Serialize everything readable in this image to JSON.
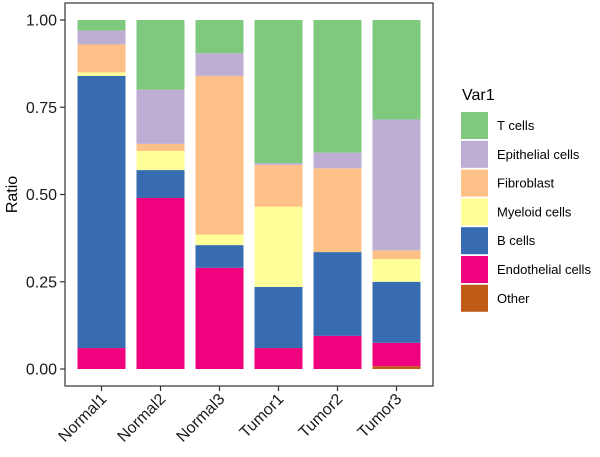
{
  "chart_data": {
    "type": "bar",
    "stacked": true,
    "ylabel": "Ratio",
    "ylim": [
      0,
      1
    ],
    "yticks": [
      "0.00",
      "0.25",
      "0.50",
      "0.75",
      "1.00"
    ],
    "categories": [
      "Normal1",
      "Normal2",
      "Normal3",
      "Tumor1",
      "Tumor2",
      "Tumor3"
    ],
    "legend": {
      "title": "Var1",
      "placement": "right"
    },
    "grid": false,
    "series": [
      {
        "name": "Other",
        "color": "#bf5b17",
        "values": [
          0.0,
          0.0,
          0.0,
          0.0,
          0.0,
          0.008
        ]
      },
      {
        "name": "Endothelial cells",
        "color": "#f0027f",
        "values": [
          0.06,
          0.49,
          0.29,
          0.06,
          0.095,
          0.067
        ]
      },
      {
        "name": "B cells",
        "color": "#386cb0",
        "values": [
          0.78,
          0.08,
          0.065,
          0.175,
          0.24,
          0.175
        ]
      },
      {
        "name": "Myeloid cells",
        "color": "#ffff99",
        "values": [
          0.01,
          0.055,
          0.03,
          0.23,
          0.0,
          0.065
        ]
      },
      {
        "name": "Fibroblast",
        "color": "#fdc086",
        "values": [
          0.08,
          0.02,
          0.455,
          0.12,
          0.24,
          0.025
        ]
      },
      {
        "name": "Epithelial cells",
        "color": "#beaed4",
        "values": [
          0.04,
          0.155,
          0.065,
          0.005,
          0.045,
          0.375
        ]
      },
      {
        "name": "T cells",
        "color": "#7fc97f",
        "values": [
          0.03,
          0.2,
          0.095,
          0.41,
          0.38,
          0.285
        ]
      }
    ],
    "legend_order": [
      "T cells",
      "Epithelial cells",
      "Fibroblast",
      "Myeloid cells",
      "B cells",
      "Endothelial cells",
      "Other"
    ]
  }
}
